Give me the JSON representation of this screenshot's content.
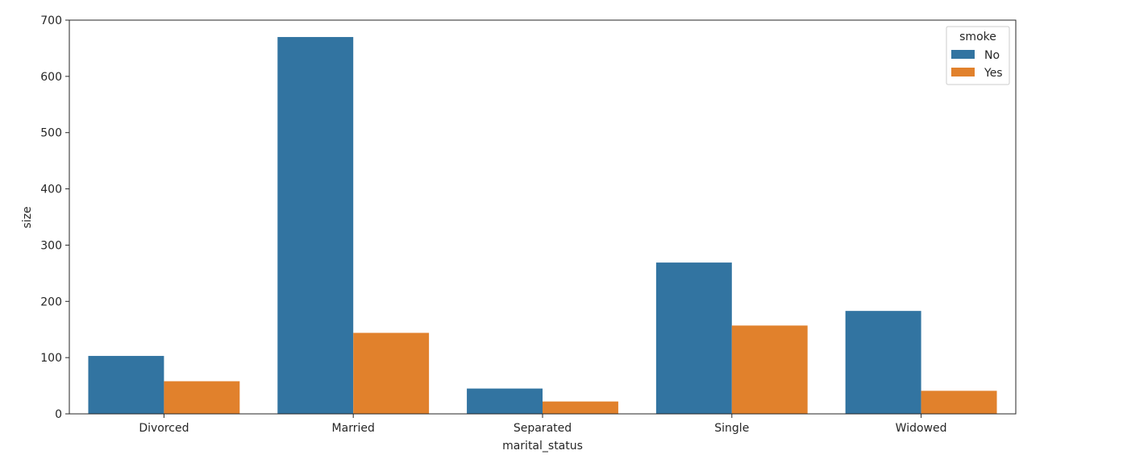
{
  "chart_data": {
    "type": "bar",
    "title": "",
    "xlabel": "marital_status",
    "ylabel": "size",
    "categories": [
      "Divorced",
      "Married",
      "Separated",
      "Single",
      "Widowed"
    ],
    "series": [
      {
        "name": "No",
        "color": "#3274a1",
        "values": [
          103,
          670,
          45,
          269,
          183
        ]
      },
      {
        "name": "Yes",
        "color": "#e1812c",
        "values": [
          58,
          144,
          22,
          157,
          41
        ]
      }
    ],
    "ylim": [
      0,
      700
    ],
    "yticks": [
      0,
      100,
      200,
      300,
      400,
      500,
      600,
      700
    ],
    "grid": false,
    "legend": {
      "title": "smoke",
      "position": "top-right"
    }
  }
}
